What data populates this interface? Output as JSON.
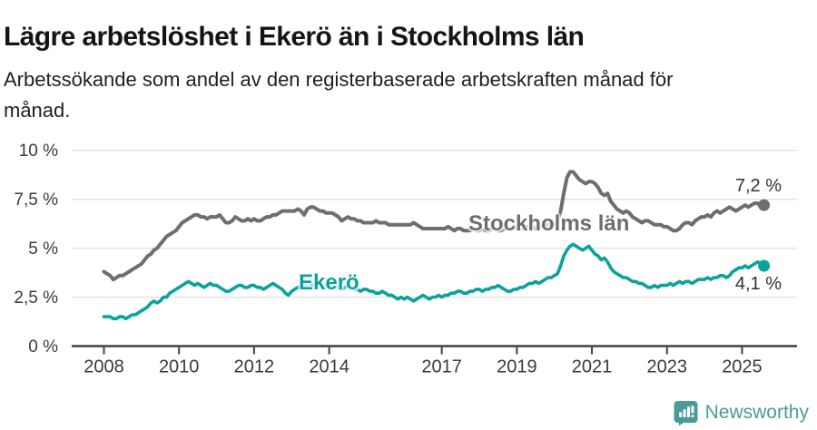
{
  "header": {
    "title": "Lägre arbetslöshet i Ekerö än i Stockholms län",
    "subtitle_lines": [
      "Arbetssökande som andel av den registerbaserade arbetskraften månad för",
      "månad."
    ]
  },
  "chart_data": {
    "type": "line",
    "unit": "%",
    "x_start_year": 2008,
    "points_per_year": 12,
    "x_ticks": [
      2008,
      2010,
      2012,
      2014,
      2017,
      2019,
      2021,
      2023,
      2025
    ],
    "y_ticks": [
      {
        "value": 0,
        "label": "0 %"
      },
      {
        "value": 2.5,
        "label": "2,5 %"
      },
      {
        "value": 5,
        "label": "5 %"
      },
      {
        "value": 7.5,
        "label": "7,5 %"
      },
      {
        "value": 10,
        "label": "10 %"
      }
    ],
    "ylim": [
      0,
      10
    ],
    "grid": true,
    "legend_position": "inline-labels",
    "series": [
      {
        "name": "Stockholms län",
        "color": "#6d6d72",
        "end_label": "7,2 %",
        "end_value": 7.2,
        "values": [
          3.8,
          3.7,
          3.6,
          3.4,
          3.5,
          3.6,
          3.6,
          3.7,
          3.8,
          3.9,
          4.0,
          4.1,
          4.2,
          4.4,
          4.6,
          4.7,
          4.9,
          5.0,
          5.2,
          5.4,
          5.6,
          5.7,
          5.8,
          5.9,
          6.1,
          6.3,
          6.4,
          6.5,
          6.6,
          6.7,
          6.7,
          6.6,
          6.6,
          6.5,
          6.6,
          6.6,
          6.6,
          6.7,
          6.5,
          6.3,
          6.3,
          6.4,
          6.6,
          6.5,
          6.4,
          6.4,
          6.5,
          6.4,
          6.5,
          6.4,
          6.4,
          6.5,
          6.6,
          6.6,
          6.7,
          6.7,
          6.8,
          6.9,
          6.9,
          6.9,
          6.9,
          6.9,
          7.0,
          6.9,
          6.7,
          7.0,
          7.1,
          7.1,
          7.0,
          6.9,
          6.9,
          6.8,
          6.8,
          6.8,
          6.7,
          6.6,
          6.4,
          6.5,
          6.6,
          6.5,
          6.5,
          6.4,
          6.4,
          6.3,
          6.3,
          6.3,
          6.3,
          6.4,
          6.3,
          6.3,
          6.3,
          6.2,
          6.2,
          6.2,
          6.2,
          6.2,
          6.2,
          6.2,
          6.2,
          6.3,
          6.2,
          6.1,
          6.0,
          6.0,
          6.0,
          6.0,
          6.0,
          6.0,
          6.0,
          6.0,
          6.1,
          6.0,
          5.9,
          6.0,
          6.0,
          5.9,
          5.9,
          5.9,
          6.0,
          5.9,
          5.9,
          6.0,
          5.9,
          5.9,
          6.0,
          6.0,
          5.9,
          5.9,
          6.0,
          6.0,
          6.0,
          6.1,
          6.0,
          6.0,
          6.0,
          6.1,
          6.1,
          6.1,
          6.0,
          6.1,
          6.1,
          6.1,
          6.2,
          6.2,
          6.2,
          6.3,
          6.9,
          7.8,
          8.6,
          8.9,
          8.9,
          8.7,
          8.5,
          8.4,
          8.3,
          8.4,
          8.4,
          8.3,
          8.1,
          7.8,
          7.7,
          7.8,
          7.4,
          7.2,
          7.0,
          6.9,
          6.8,
          6.9,
          6.8,
          6.6,
          6.5,
          6.4,
          6.3,
          6.4,
          6.4,
          6.3,
          6.2,
          6.2,
          6.2,
          6.1,
          6.1,
          6.0,
          5.9,
          5.9,
          6.0,
          6.2,
          6.3,
          6.3,
          6.2,
          6.4,
          6.5,
          6.6,
          6.6,
          6.7,
          6.6,
          6.8,
          6.9,
          6.8,
          6.9,
          7.0,
          7.1,
          7.0,
          6.9,
          7.0,
          7.1,
          7.2,
          7.1,
          7.2,
          7.3,
          7.3,
          7.1,
          7.2
        ]
      },
      {
        "name": "Ekerö",
        "color": "#0ba29c",
        "end_label": "4,1 %",
        "end_value": 4.1,
        "values": [
          1.5,
          1.5,
          1.5,
          1.4,
          1.4,
          1.5,
          1.5,
          1.4,
          1.5,
          1.6,
          1.6,
          1.7,
          1.8,
          1.9,
          2.0,
          2.2,
          2.3,
          2.2,
          2.3,
          2.5,
          2.5,
          2.7,
          2.8,
          2.9,
          3.0,
          3.1,
          3.2,
          3.3,
          3.2,
          3.1,
          3.2,
          3.1,
          3.0,
          3.1,
          3.2,
          3.1,
          3.1,
          3.0,
          2.9,
          2.8,
          2.8,
          2.9,
          3.0,
          3.1,
          3.1,
          3.0,
          3.0,
          3.1,
          3.1,
          3.0,
          3.0,
          2.9,
          3.0,
          3.1,
          3.2,
          3.1,
          3.0,
          2.9,
          2.7,
          2.6,
          2.8,
          2.9,
          3.0,
          3.1,
          3.0,
          3.1,
          3.2,
          3.1,
          3.0,
          3.1,
          3.0,
          3.1,
          3.1,
          3.2,
          3.1,
          3.0,
          2.9,
          3.0,
          3.1,
          3.0,
          2.9,
          2.9,
          2.8,
          2.9,
          2.9,
          2.8,
          2.8,
          2.7,
          2.7,
          2.8,
          2.7,
          2.6,
          2.6,
          2.5,
          2.4,
          2.5,
          2.4,
          2.5,
          2.4,
          2.3,
          2.4,
          2.5,
          2.6,
          2.5,
          2.4,
          2.5,
          2.5,
          2.6,
          2.5,
          2.6,
          2.6,
          2.7,
          2.7,
          2.8,
          2.8,
          2.7,
          2.7,
          2.8,
          2.8,
          2.9,
          2.9,
          2.8,
          2.9,
          2.9,
          3.0,
          3.0,
          3.1,
          3.0,
          2.9,
          2.8,
          2.8,
          2.9,
          2.9,
          3.0,
          3.0,
          3.1,
          3.2,
          3.2,
          3.3,
          3.2,
          3.3,
          3.4,
          3.5,
          3.5,
          3.6,
          3.7,
          4.1,
          4.6,
          4.9,
          5.1,
          5.2,
          5.1,
          5.0,
          4.9,
          5.0,
          5.1,
          4.9,
          4.7,
          4.6,
          4.4,
          4.5,
          4.3,
          4.0,
          3.8,
          3.7,
          3.6,
          3.5,
          3.5,
          3.4,
          3.3,
          3.3,
          3.2,
          3.2,
          3.1,
          3.0,
          3.0,
          3.1,
          3.0,
          3.1,
          3.1,
          3.1,
          3.2,
          3.1,
          3.2,
          3.3,
          3.2,
          3.3,
          3.3,
          3.2,
          3.3,
          3.4,
          3.4,
          3.4,
          3.5,
          3.4,
          3.5,
          3.5,
          3.6,
          3.6,
          3.5,
          3.6,
          3.8,
          3.9,
          4.0,
          4.0,
          4.1,
          4.0,
          4.1,
          4.2,
          4.3,
          4.2,
          4.1
        ]
      }
    ],
    "style": {
      "grid_color": "#e2e2e2",
      "axis_color": "#404040",
      "tick_label_color": "#3a3a3a"
    }
  },
  "footer": {
    "brand": "Newsworthy",
    "brand_color": "#4a9c97"
  }
}
